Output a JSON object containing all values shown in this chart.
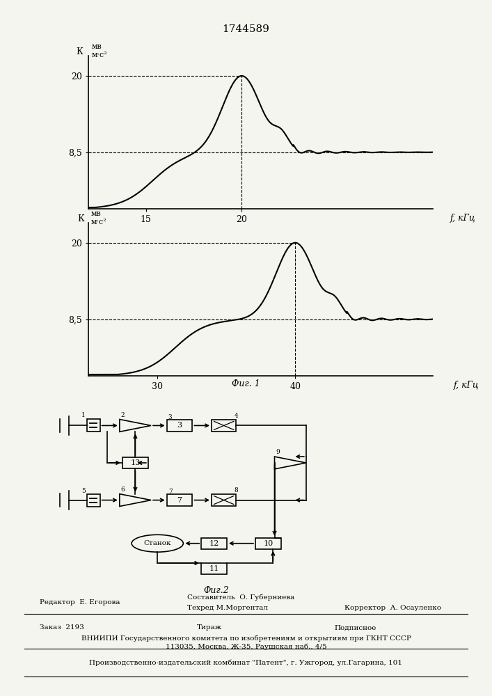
{
  "title": "1744589",
  "graph1": {
    "x_start": 12,
    "x_end": 30,
    "peak_x": 20,
    "peak_y": 20,
    "ref_y1": 8.5,
    "ref_y2": 20,
    "ref_x": 20,
    "tick_x1": 15,
    "tick_x2": 20,
    "xlabel": "f, кГц",
    "ylim": [
      0,
      23
    ],
    "xlim": [
      12,
      30
    ]
  },
  "graph2": {
    "x_start": 25,
    "x_end": 50,
    "peak_x": 40,
    "peak_y": 20,
    "ref_y1": 8.5,
    "ref_y2": 20,
    "ref_x": 40,
    "tick_x1": 30,
    "tick_x2": 40,
    "xlabel": "f, кГц",
    "ylim": [
      0,
      23
    ],
    "xlim": [
      25,
      50
    ]
  },
  "fig1_label": "Фиг. 1",
  "fig2_label": "Фиг.2",
  "footer_line1": "Составитель  О. Губерниева",
  "footer_editor": "Редактор  Е. Егорова",
  "footer_techred": "Техред М.Моргентал",
  "footer_corrector": "Корректор  А. Осауленко",
  "footer_order": "Заказ  2193",
  "footer_tirazh": "Тираж",
  "footer_podpisnoe": "Подписное",
  "footer_vniipii": "ВНИИПИ Государственного комитета по изобретениям и открытиям при ГКНТ СССР",
  "footer_address": "113035, Москва, Ж-35, Раушская наб., 4/5",
  "footer_plant": "Производственно-издательский комбинат \"Патент\", г. Ужгород, ул.Гагарина, 101",
  "bg_color": "#f5f5f0",
  "line_color": "#000000"
}
